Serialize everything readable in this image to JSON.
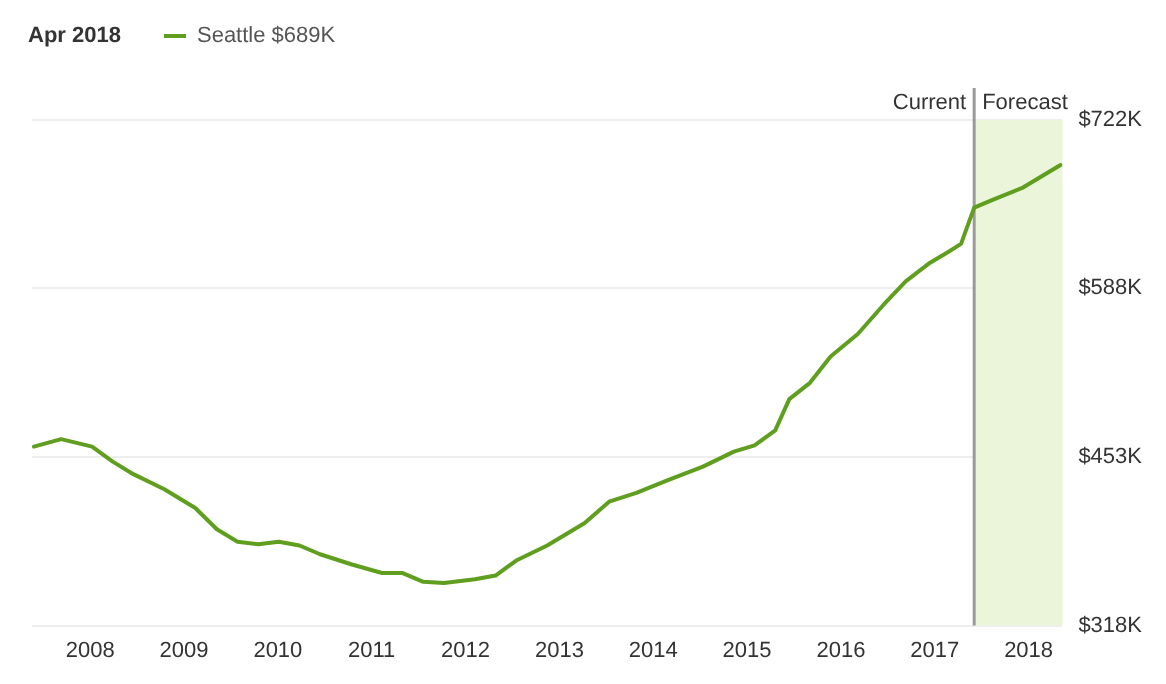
{
  "chart_data": {
    "type": "line",
    "title": "Apr 2018",
    "x": [
      2007.4,
      2007.69,
      2008.02,
      2008.24,
      2008.46,
      2008.79,
      2009.12,
      2009.35,
      2009.57,
      2009.79,
      2010.01,
      2010.23,
      2010.45,
      2010.78,
      2011.11,
      2011.33,
      2011.55,
      2011.77,
      2012.1,
      2012.32,
      2012.54,
      2012.87,
      2013.27,
      2013.53,
      2013.82,
      2014.15,
      2014.53,
      2014.86,
      2015.08,
      2015.3,
      2015.45,
      2015.67,
      2015.89,
      2016.18,
      2016.45,
      2016.69,
      2016.95,
      2017.13,
      2017.28,
      2017.42,
      2017.61,
      2017.94,
      2018.34
    ],
    "series": [
      {
        "name": "Seattle $689K",
        "color": "#5f9e1f",
        "values": [
          461,
          467,
          461,
          449,
          439,
          427,
          412,
          395,
          385,
          383,
          385,
          382,
          375,
          367,
          360,
          360,
          353,
          352,
          355,
          358,
          370,
          382,
          400,
          417,
          424,
          434,
          445,
          457,
          462,
          474,
          499,
          512,
          533,
          551,
          574,
          593,
          608,
          616,
          623,
          652,
          658,
          668,
          686
        ]
      }
    ],
    "xlim": [
      2007.38,
      2018.36
    ],
    "xticks": [
      2008,
      2009,
      2010,
      2011,
      2012,
      2013,
      2014,
      2015,
      2016,
      2017,
      2018
    ],
    "ylim": [
      318,
      722
    ],
    "yticks": [
      {
        "value": 318,
        "label": "$318K"
      },
      {
        "value": 453,
        "label": "$453K"
      },
      {
        "value": 588,
        "label": "$588K"
      },
      {
        "value": 722,
        "label": "$722K"
      }
    ],
    "ref_lines": [
      {
        "axis": "x",
        "value": 2017.42,
        "label": "Current",
        "color": "#9a9a9a"
      }
    ],
    "bands": [
      {
        "axis": "x",
        "from": 2017.42,
        "to": 2018.36,
        "label": "Forecast",
        "color": "#eaf5d9"
      }
    ],
    "grid": "y",
    "legend": "top left",
    "marker": "none",
    "line_style": "solid"
  }
}
